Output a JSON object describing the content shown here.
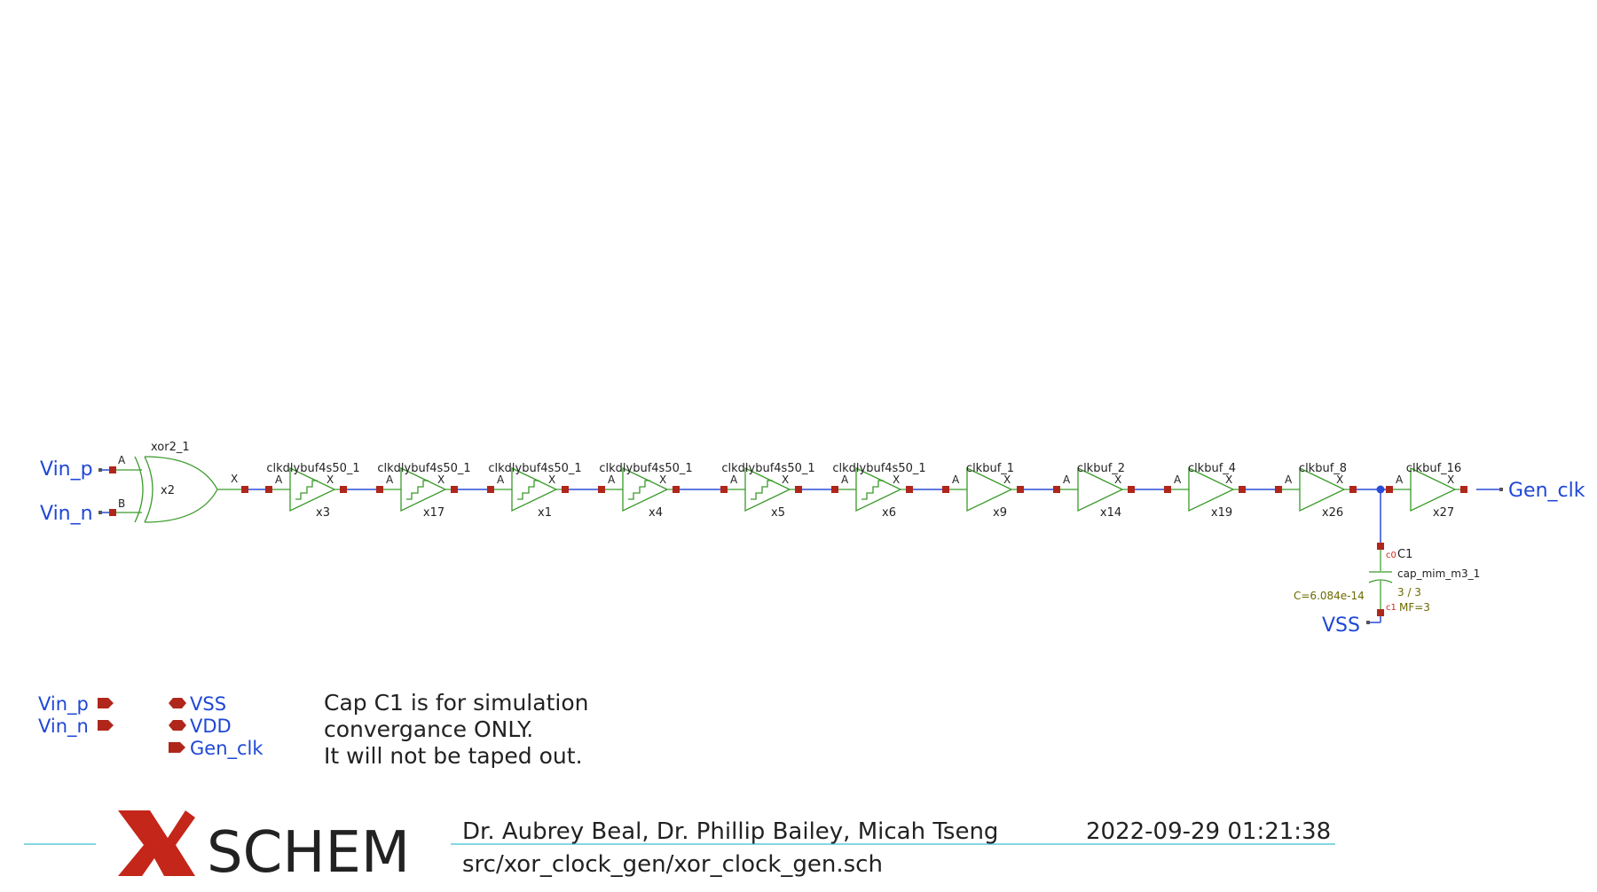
{
  "schematic": {
    "xor_gate": {
      "symbol": "xor2_1",
      "instance": "x2",
      "pin_a": "A",
      "pin_b": "B",
      "pin_out": "X"
    },
    "input_nets": [
      "Vin_p",
      "Vin_n"
    ],
    "output_net": "Gen_clk",
    "buffers": [
      {
        "symbol": "clkdlybuf4s50_1",
        "instance": "x3",
        "kind": "dly"
      },
      {
        "symbol": "clkdlybuf4s50_1",
        "instance": "x17",
        "kind": "dly"
      },
      {
        "symbol": "clkdlybuf4s50_1",
        "instance": "x1",
        "kind": "dly"
      },
      {
        "symbol": "clkdlybuf4s50_1",
        "instance": "x4",
        "kind": "dly"
      },
      {
        "symbol": "clkdlybuf4s50_1",
        "instance": "x5",
        "kind": "dly"
      },
      {
        "symbol": "clkdlybuf4s50_1",
        "instance": "x6",
        "kind": "dly"
      },
      {
        "symbol": "clkbuf_1",
        "instance": "x9",
        "kind": "buf"
      },
      {
        "symbol": "clkbuf_2",
        "instance": "x14",
        "kind": "buf"
      },
      {
        "symbol": "clkbuf_4",
        "instance": "x19",
        "kind": "buf"
      },
      {
        "symbol": "clkbuf_8",
        "instance": "x26",
        "kind": "buf"
      },
      {
        "symbol": "clkbuf_16",
        "instance": "x27",
        "kind": "buf"
      }
    ],
    "buffer_pin_in": "A",
    "buffer_pin_out": "X",
    "capacitor": {
      "instance": "C1",
      "symbol": "cap_mim_m3_1",
      "value": "C=6.084e-14",
      "ratio": "3 / 3",
      "mf": "MF=3",
      "pin_top": "c0",
      "pin_bottom": "c1",
      "ground_net": "VSS"
    }
  },
  "ports": {
    "inputs": [
      "Vin_p",
      "Vin_n"
    ],
    "inouts": [
      "VSS",
      "VDD"
    ],
    "outputs": [
      "Gen_clk"
    ]
  },
  "note": [
    "Cap C1 is for simulation",
    "convergance ONLY.",
    "It will not be taped out."
  ],
  "titleblock": {
    "logo_text": "SCHEM",
    "authors": "Dr. Aubrey Beal, Dr. Phillip Bailey, Micah Tseng",
    "datetime": "2022-09-29  01:21:38",
    "path": "src/xor_clock_gen/xor_clock_gen.sch"
  },
  "colors": {
    "wire": "#2a4bd7",
    "symbol": "#3a9a2a",
    "pin": "#b0261a",
    "net_label": "#1f47d6",
    "logo_x": "#c4261a",
    "title_line": "#5bc8d8"
  }
}
